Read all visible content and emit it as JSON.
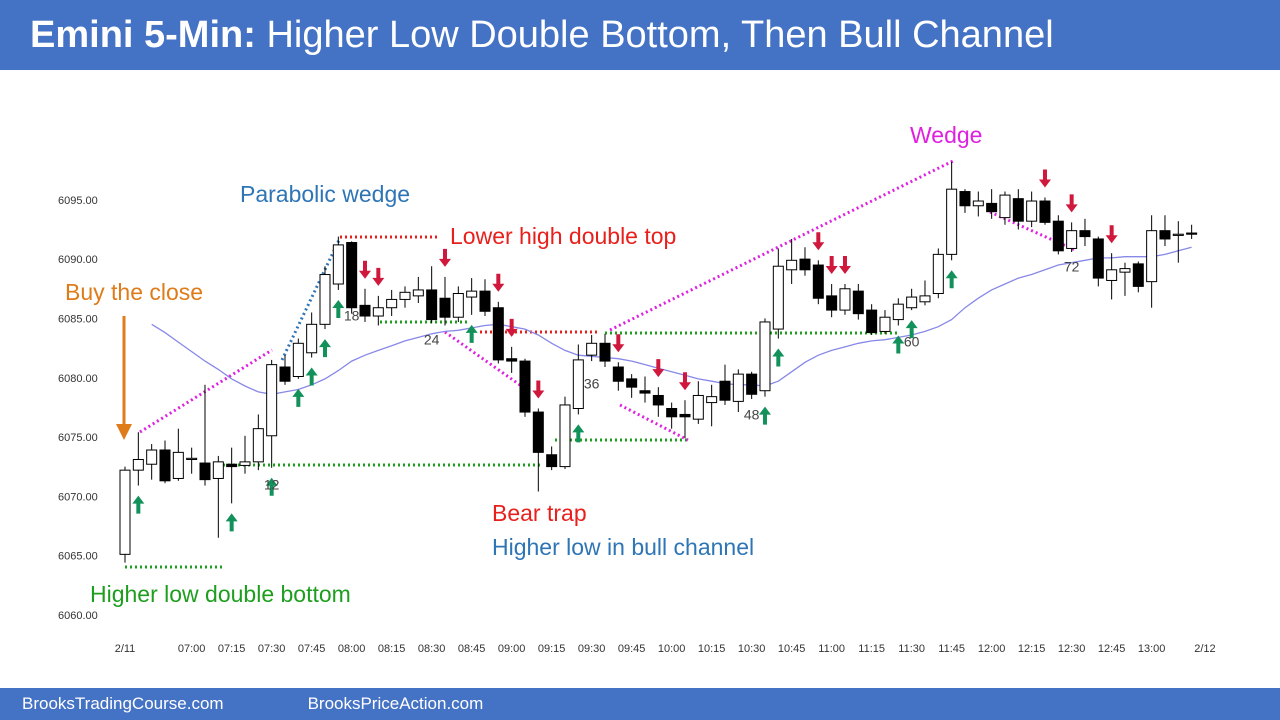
{
  "header": {
    "title_bold": "Emini 5-Min:",
    "title_rest": " Higher Low Double Bottom, Then Bull Channel"
  },
  "footer": {
    "left": "BrooksTradingCourse.com",
    "right": "BrooksPriceAction.com"
  },
  "chart_data": {
    "type": "candlestick",
    "categories": [
      "2/11",
      null,
      null,
      null,
      null,
      "07:00",
      null,
      null,
      "07:15",
      null,
      null,
      "07:30",
      null,
      null,
      "07:45",
      null,
      null,
      "08:00",
      null,
      null,
      "08:15",
      null,
      null,
      "08:30",
      null,
      null,
      "08:45",
      null,
      null,
      "09:00",
      null,
      null,
      "09:15",
      null,
      null,
      "09:30",
      null,
      null,
      "09:45",
      null,
      null,
      "10:00",
      null,
      null,
      "10:15",
      null,
      null,
      "10:30",
      null,
      null,
      "10:45",
      null,
      null,
      "11:00",
      null,
      null,
      "11:15",
      null,
      null,
      "11:30",
      null,
      null,
      "11:45",
      null,
      null,
      "12:00",
      null,
      null,
      "12:15",
      null,
      null,
      "12:30",
      null,
      null,
      "12:45",
      null,
      null,
      "13:00",
      null,
      null,
      null,
      "2/12"
    ],
    "open": [
      6065.2,
      6072.3,
      6072.8,
      6074.0,
      6071.6,
      6073.2,
      6072.9,
      6071.6,
      6072.8,
      6072.7,
      6073.0,
      6075.2,
      6081.0,
      6080.2,
      6082.2,
      6084.6,
      6088.0,
      6091.5,
      6086.2,
      6085.3,
      6086.0,
      6086.7,
      6087.0,
      6087.5,
      6086.8,
      6085.2,
      6086.9,
      6087.4,
      6086.0,
      6081.7,
      6081.5,
      6077.2,
      6073.6,
      6072.6,
      6077.5,
      6082.0,
      6083.0,
      6081.0,
      6080.0,
      6079.0,
      6078.6,
      6077.5,
      6077.0,
      6076.6,
      6078.0,
      6079.8,
      6078.1,
      6080.4,
      6079.0,
      6084.2,
      6089.2,
      6090.1,
      6089.6,
      6087.0,
      6085.8,
      6087.4,
      6085.8,
      6084.0,
      6085.0,
      6086.0,
      6086.5,
      6087.2,
      6090.5,
      6095.8,
      6094.6,
      6094.8,
      6093.6,
      6095.2,
      6093.3,
      6095.0,
      6093.3,
      6091.0,
      6092.5,
      6091.8,
      6088.3,
      6089.0,
      6089.7,
      6088.2,
      6092.5,
      6092.2,
      6092.3,
      null
    ],
    "high": [
      6072.6,
      6075.5,
      6074.5,
      6074.8,
      6075.8,
      6074.2,
      6079.5,
      6073.5,
      6074.2,
      6075.2,
      6077.0,
      6081.6,
      6082.0,
      6083.4,
      6085.6,
      6089.5,
      6092.0,
      6091.6,
      6087.6,
      6087.0,
      6087.5,
      6087.8,
      6088.6,
      6089.5,
      6088.6,
      6087.8,
      6088.5,
      6088.4,
      6086.5,
      6082.7,
      6081.7,
      6077.5,
      6074.3,
      6078.5,
      6082.9,
      6083.7,
      6083.8,
      6081.4,
      6080.4,
      6080.2,
      6079.3,
      6078.0,
      6078.2,
      6079.8,
      6079.5,
      6081.2,
      6080.8,
      6080.6,
      6085.1,
      6091.0,
      6091.8,
      6091.1,
      6090.0,
      6088.0,
      6088.0,
      6088.0,
      6086.3,
      6085.8,
      6086.8,
      6087.6,
      6088.3,
      6091.0,
      6098.3,
      6096.0,
      6095.8,
      6096.0,
      6095.8,
      6096.0,
      6095.8,
      6095.3,
      6093.8,
      6093.2,
      6093.5,
      6092.0,
      6090.6,
      6089.8,
      6089.9,
      6093.8,
      6093.8,
      6093.3,
      6093.0,
      null
    ],
    "low": [
      6064.5,
      6071.0,
      6071.5,
      6071.2,
      6071.4,
      6072.0,
      6071.0,
      6066.6,
      6069.5,
      6072.0,
      6072.3,
      6072.5,
      6079.5,
      6080.0,
      6081.8,
      6084.2,
      6087.5,
      6085.5,
      6084.8,
      6084.5,
      6085.3,
      6086.0,
      6086.4,
      6084.7,
      6084.5,
      6084.8,
      6085.4,
      6085.3,
      6081.3,
      6080.5,
      6076.8,
      6070.5,
      6072.3,
      6072.4,
      6077.0,
      6081.5,
      6081.0,
      6079.0,
      6078.4,
      6078.0,
      6076.8,
      6075.8,
      6075.0,
      6076.2,
      6076.0,
      6077.8,
      6077.2,
      6078.3,
      6078.5,
      6083.4,
      6088.0,
      6088.7,
      6086.3,
      6085.2,
      6085.4,
      6085.0,
      6083.7,
      6083.8,
      6084.5,
      6085.8,
      6086.2,
      6086.8,
      6090.0,
      6094.0,
      6093.7,
      6093.5,
      6093.0,
      6092.6,
      6092.8,
      6093.0,
      6090.5,
      6090.7,
      6091.2,
      6087.8,
      6086.7,
      6087.0,
      6087.3,
      6086.0,
      6091.2,
      6089.8,
      6091.8,
      null
    ],
    "close": [
      6072.3,
      6073.2,
      6074.0,
      6071.4,
      6073.8,
      6073.3,
      6071.5,
      6073.0,
      6072.6,
      6073.0,
      6075.8,
      6081.2,
      6079.8,
      6083.0,
      6084.6,
      6088.8,
      6091.3,
      6086.0,
      6085.3,
      6086.0,
      6086.7,
      6087.3,
      6087.5,
      6085.0,
      6085.2,
      6087.2,
      6087.4,
      6085.7,
      6081.6,
      6081.5,
      6077.2,
      6073.8,
      6072.6,
      6077.8,
      6081.6,
      6083.0,
      6081.5,
      6079.8,
      6079.3,
      6078.8,
      6077.8,
      6076.8,
      6076.8,
      6078.6,
      6078.5,
      6078.2,
      6080.4,
      6078.7,
      6084.8,
      6089.5,
      6090.0,
      6089.2,
      6086.8,
      6085.8,
      6087.6,
      6085.5,
      6083.9,
      6085.2,
      6086.3,
      6086.9,
      6087.0,
      6090.5,
      6096.0,
      6094.6,
      6095.0,
      6094.1,
      6095.5,
      6093.3,
      6095.0,
      6093.2,
      6090.8,
      6092.5,
      6092.0,
      6088.5,
      6089.2,
      6089.3,
      6087.8,
      6092.5,
      6091.8,
      6092.2,
      6092.2,
      null
    ],
    "moving_average": {
      "color": "#8888e8",
      "values": [
        null,
        null,
        6084.6,
        6083.9,
        6083.1,
        6082.3,
        6081.5,
        6080.8,
        6080.0,
        6079.4,
        6078.9,
        6078.7,
        6078.9,
        6079.1,
        6079.5,
        6080.0,
        6080.7,
        6081.5,
        6082.0,
        6082.4,
        6082.8,
        6083.2,
        6083.5,
        6083.8,
        6084.0,
        6084.1,
        6084.3,
        6084.5,
        6084.6,
        6084.4,
        6084.2,
        6083.7,
        6083.0,
        6082.4,
        6082.0,
        6081.9,
        6081.8,
        6081.7,
        6081.5,
        6081.2,
        6080.9,
        6080.6,
        6080.3,
        6080.0,
        6079.8,
        6079.6,
        6079.5,
        6079.5,
        6079.4,
        6079.8,
        6080.6,
        6081.4,
        6082.0,
        6082.4,
        6082.7,
        6083.0,
        6083.2,
        6083.3,
        6083.5,
        6083.7,
        6084.0,
        6084.4,
        6085.0,
        6086.0,
        6086.8,
        6087.5,
        6088.0,
        6088.5,
        6088.8,
        6089.2,
        6089.6,
        6089.8,
        6090.0,
        6090.2,
        6090.2,
        6090.3,
        6090.3,
        6090.3,
        6090.5,
        6090.8,
        6091.1,
        null
      ]
    },
    "ylim": [
      6058,
      6099
    ],
    "yticks": [
      {
        "value": 6060,
        "label": "6060.00"
      },
      {
        "value": 6065,
        "label": "6065.00"
      },
      {
        "value": 6070,
        "label": "6070.00"
      },
      {
        "value": 6075,
        "label": "6075.00"
      },
      {
        "value": 6080,
        "label": "6080.00"
      },
      {
        "value": 6085,
        "label": "6085.00"
      },
      {
        "value": 6090,
        "label": "6090.00"
      },
      {
        "value": 6095,
        "label": "6095.00"
      }
    ],
    "grid": false,
    "bar_numbers": [
      12,
      18,
      24,
      36,
      48,
      60,
      72
    ],
    "annotations": [
      {
        "text": "Parabolic wedge",
        "color": "#2e75b6"
      },
      {
        "text": "Lower high double top",
        "color": "#e8201c"
      },
      {
        "text": "Buy the close",
        "color": "#e07b1a"
      },
      {
        "text": "Wedge",
        "color": "#e020e0"
      },
      {
        "text": "Bear trap",
        "color": "#e8201c"
      },
      {
        "text": "Higher low in bull channel",
        "color": "#2e75b6"
      },
      {
        "text": "Higher low double bottom",
        "color": "#1e9e1e"
      }
    ]
  }
}
